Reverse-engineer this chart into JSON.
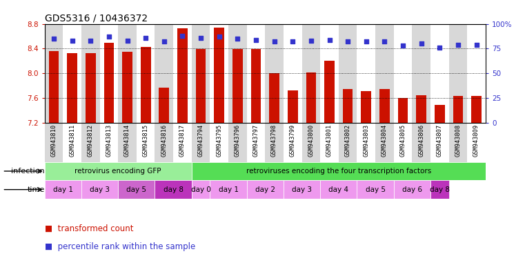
{
  "title": "GDS5316 / 10436372",
  "samples": [
    "GSM943810",
    "GSM943811",
    "GSM943812",
    "GSM943813",
    "GSM943814",
    "GSM943815",
    "GSM943816",
    "GSM943817",
    "GSM943794",
    "GSM943795",
    "GSM943796",
    "GSM943797",
    "GSM943798",
    "GSM943799",
    "GSM943800",
    "GSM943801",
    "GSM943802",
    "GSM943803",
    "GSM943804",
    "GSM943805",
    "GSM943806",
    "GSM943807",
    "GSM943808",
    "GSM943809"
  ],
  "bar_values": [
    8.36,
    8.33,
    8.33,
    8.49,
    8.35,
    8.43,
    7.77,
    8.73,
    8.39,
    8.74,
    8.39,
    8.39,
    8.0,
    7.73,
    8.02,
    8.2,
    7.75,
    7.72,
    7.75,
    7.6,
    7.65,
    7.49,
    7.64,
    7.64
  ],
  "dot_values": [
    85,
    83,
    83,
    87,
    83,
    86,
    82,
    88,
    86,
    87,
    85,
    84,
    82,
    82,
    83,
    84,
    82,
    82,
    82,
    78,
    80,
    76,
    79,
    79
  ],
  "ylim_left": [
    7.2,
    8.8
  ],
  "ylim_right": [
    0,
    100
  ],
  "yticks_left": [
    7.2,
    7.6,
    8.0,
    8.4,
    8.8
  ],
  "yticks_right": [
    0,
    25,
    50,
    75,
    100
  ],
  "ytick_labels_right": [
    "0",
    "25",
    "50",
    "75",
    "100%"
  ],
  "bar_color": "#cc1100",
  "dot_color": "#3333cc",
  "infection_groups": [
    {
      "label": "retrovirus encoding GFP",
      "n_samples": 8,
      "color": "#99ee99"
    },
    {
      "label": "retroviruses encoding the four transcription factors",
      "n_samples": 16,
      "color": "#55dd55"
    }
  ],
  "time_groups": [
    {
      "label": "day 1",
      "n_samples": 2,
      "color": "#ee99ee"
    },
    {
      "label": "day 3",
      "n_samples": 2,
      "color": "#ee99ee"
    },
    {
      "label": "day 5",
      "n_samples": 2,
      "color": "#cc66cc"
    },
    {
      "label": "day 8",
      "n_samples": 2,
      "color": "#bb33bb"
    },
    {
      "label": "day 0",
      "n_samples": 1,
      "color": "#ee99ee"
    },
    {
      "label": "day 1",
      "n_samples": 2,
      "color": "#ee99ee"
    },
    {
      "label": "day 2",
      "n_samples": 2,
      "color": "#ee99ee"
    },
    {
      "label": "day 3",
      "n_samples": 2,
      "color": "#ee99ee"
    },
    {
      "label": "day 4",
      "n_samples": 2,
      "color": "#ee99ee"
    },
    {
      "label": "day 5",
      "n_samples": 2,
      "color": "#ee99ee"
    },
    {
      "label": "day 6",
      "n_samples": 2,
      "color": "#ee99ee"
    },
    {
      "label": "day 8",
      "n_samples": 1,
      "color": "#bb33bb"
    }
  ],
  "legend_items": [
    {
      "label": "transformed count",
      "color": "#cc1100"
    },
    {
      "label": "percentile rank within the sample",
      "color": "#3333cc"
    }
  ],
  "bar_bottom": 7.2,
  "ylabel_left_color": "#cc1100",
  "ylabel_right_color": "#3333cc",
  "col_bg_even": "#d8d8d8",
  "col_bg_odd": "#ffffff"
}
